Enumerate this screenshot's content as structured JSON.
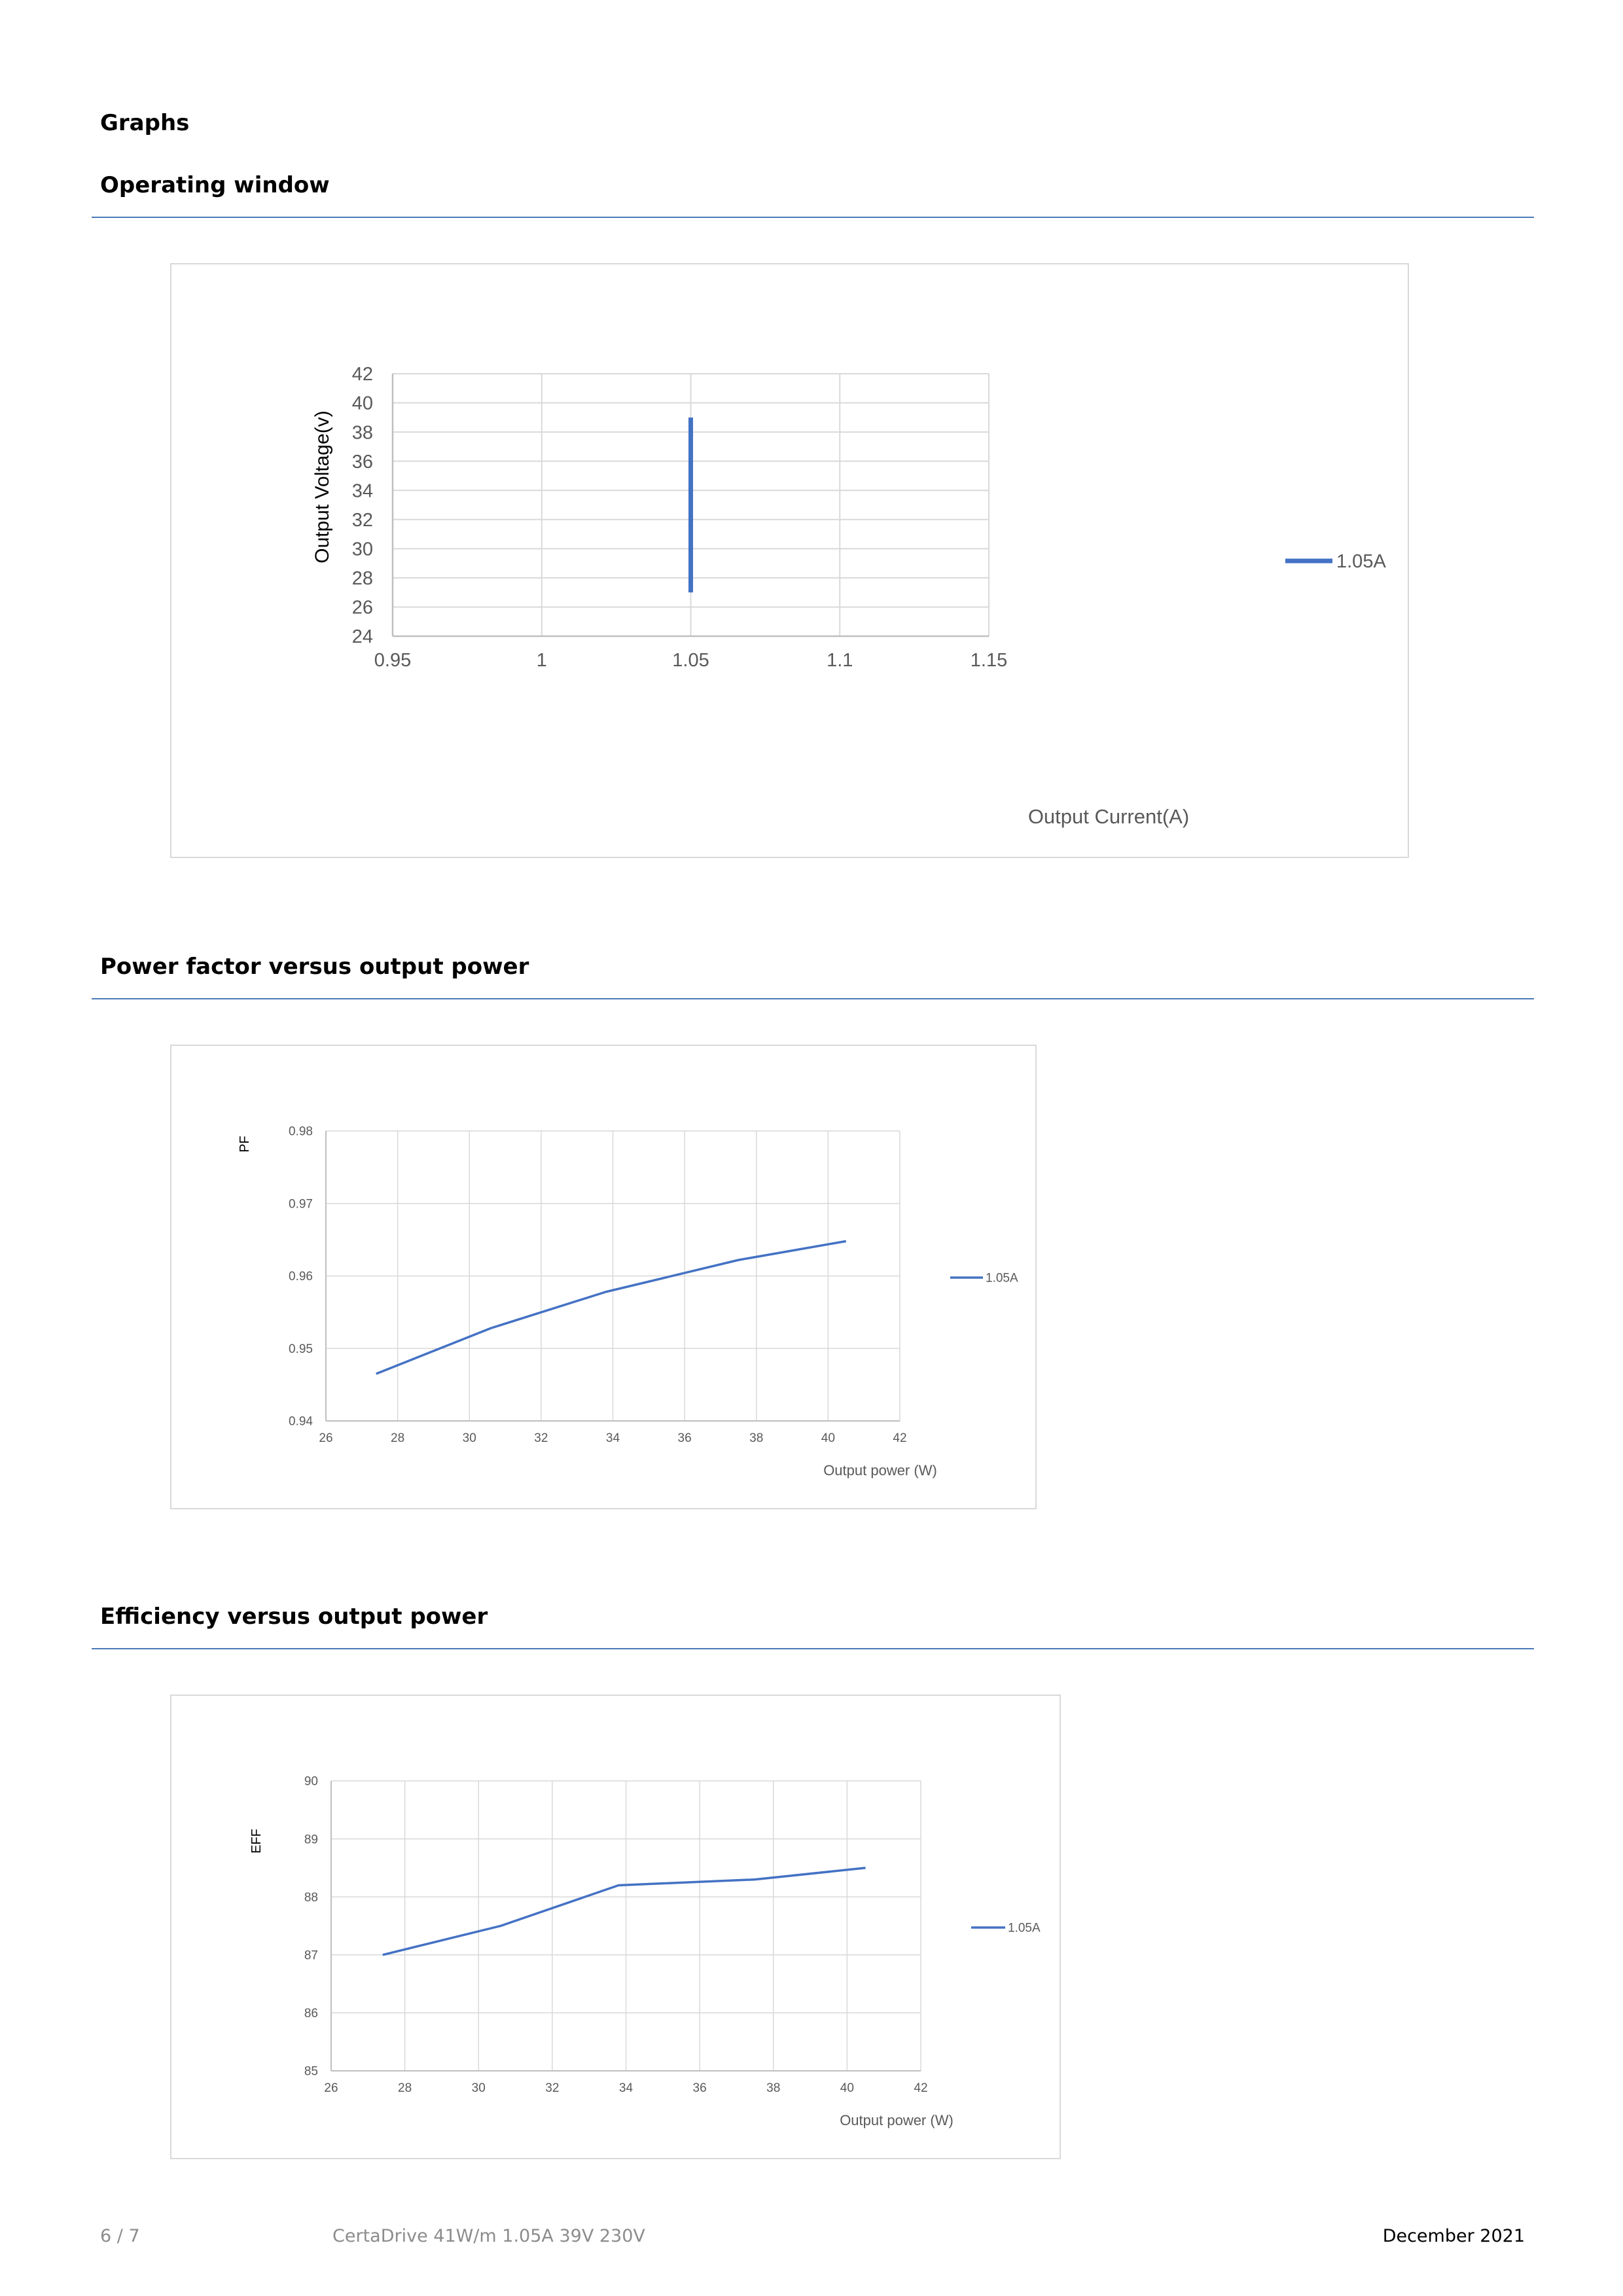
{
  "page": {
    "section_title": "Graphs"
  },
  "sections": [
    {
      "title": "Operating window"
    },
    {
      "title": "Power factor versus output power"
    },
    {
      "title": "Efficiency versus output power"
    }
  ],
  "footer": {
    "page_number": "6 / 7",
    "product": "CertaDrive 41W/m 1.05A 39V 230V",
    "date": "December 2021"
  },
  "colors": {
    "accent": "#4a7ab8",
    "series": "#4472c4",
    "grid": "#d9d9d9",
    "muted_text": "#8c8c8c"
  },
  "chart_data": [
    {
      "type": "line",
      "title": "",
      "xlabel": "Output Current(A)",
      "ylabel": "Output Voltage(v)",
      "xlim": [
        0.95,
        1.15
      ],
      "ylim": [
        24,
        42
      ],
      "x_ticks": [
        "0.95",
        "1",
        "1.05",
        "1.1",
        "1.15"
      ],
      "y_ticks": [
        "24",
        "26",
        "28",
        "30",
        "32",
        "34",
        "36",
        "38",
        "40",
        "42"
      ],
      "grid": true,
      "legend_position": "right",
      "series": [
        {
          "name": "1.05A",
          "x": [
            1.05,
            1.05
          ],
          "y": [
            27,
            39
          ]
        }
      ]
    },
    {
      "type": "line",
      "title": "",
      "xlabel": "Output power (W)",
      "ylabel": "PF",
      "xlim": [
        26,
        42
      ],
      "ylim": [
        0.94,
        0.98
      ],
      "x_ticks": [
        "26",
        "28",
        "30",
        "32",
        "34",
        "36",
        "38",
        "40",
        "42"
      ],
      "y_ticks": [
        "0.94",
        "0.95",
        "0.96",
        "0.97",
        "0.98"
      ],
      "grid": true,
      "legend_position": "right",
      "series": [
        {
          "name": "1.05A",
          "x": [
            27.4,
            30.6,
            33.8,
            37.5,
            40.5
          ],
          "y": [
            0.9465,
            0.9528,
            0.9578,
            0.9622,
            0.9648
          ]
        }
      ]
    },
    {
      "type": "line",
      "title": "",
      "xlabel": "Output power (W)",
      "ylabel": "EFF",
      "xlim": [
        26,
        42
      ],
      "ylim": [
        85,
        90
      ],
      "x_ticks": [
        "26",
        "28",
        "30",
        "32",
        "34",
        "36",
        "38",
        "40",
        "42"
      ],
      "y_ticks": [
        "85",
        "86",
        "87",
        "88",
        "89",
        "90"
      ],
      "grid": true,
      "legend_position": "right",
      "series": [
        {
          "name": "1.05A",
          "x": [
            27.4,
            30.6,
            33.8,
            37.5,
            40.5
          ],
          "y": [
            87.0,
            87.5,
            88.2,
            88.3,
            88.5
          ]
        }
      ]
    }
  ]
}
